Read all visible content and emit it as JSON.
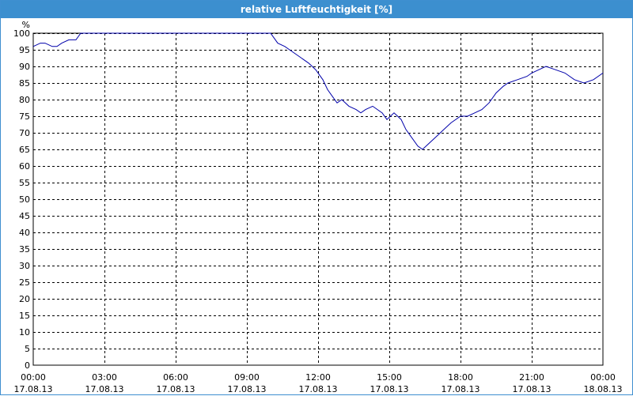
{
  "window": {
    "title": "relative Luftfeuchtigkeit [%]"
  },
  "colors": {
    "titlebar": "#3c8fcf",
    "line": "#0000aa",
    "grid": "#000000",
    "background": "#ffffff"
  },
  "chart_data": {
    "type": "line",
    "title": "relative Luftfeuchtigkeit [%]",
    "ylabel": "%",
    "xlabel": "",
    "ylim": [
      0,
      100
    ],
    "xlim": [
      0,
      24
    ],
    "grid": true,
    "y_ticks": [
      "0",
      "5",
      "10",
      "15",
      "20",
      "25",
      "30",
      "35",
      "40",
      "45",
      "50",
      "55",
      "60",
      "65",
      "70",
      "75",
      "80",
      "85",
      "90",
      "95",
      "100"
    ],
    "x_ticks": [
      {
        "time": "00:00",
        "date": "17.08.13"
      },
      {
        "time": "03:00",
        "date": "17.08.13"
      },
      {
        "time": "06:00",
        "date": "17.08.13"
      },
      {
        "time": "09:00",
        "date": "17.08.13"
      },
      {
        "time": "12:00",
        "date": "17.08.13"
      },
      {
        "time": "15:00",
        "date": "17.08.13"
      },
      {
        "time": "18:00",
        "date": "17.08.13"
      },
      {
        "time": "21:00",
        "date": "17.08.13"
      },
      {
        "time": "00:00",
        "date": "18.08.13"
      }
    ],
    "series": [
      {
        "x": [
          0,
          0.3,
          0.5,
          0.8,
          1.0,
          1.2,
          1.5,
          1.8,
          2.0,
          3.0,
          6.0,
          9.0,
          10.0,
          10.1,
          10.3,
          10.6,
          10.8,
          11.2,
          11.6,
          11.9,
          12.2,
          12.4,
          12.6,
          12.8,
          13.0,
          13.3,
          13.6,
          13.8,
          14.0,
          14.3,
          14.5,
          14.7,
          14.9,
          15.2,
          15.5,
          15.7,
          15.9,
          16.2,
          16.4,
          16.7,
          17.0,
          17.3,
          17.6,
          18.0,
          18.3,
          18.6,
          18.9,
          19.2,
          19.5,
          19.8,
          20.0,
          20.4,
          20.8,
          21.0,
          21.3,
          21.6,
          22.0,
          22.4,
          22.8,
          23.2,
          23.6,
          24.0
        ],
        "y": [
          96,
          97,
          97,
          96,
          96,
          97,
          98,
          98,
          100,
          100,
          100,
          100,
          100,
          99,
          97,
          96,
          95,
          93,
          91,
          89,
          86,
          83,
          81,
          79,
          80,
          78,
          77,
          76,
          77,
          78,
          77,
          76,
          74,
          76,
          74,
          71,
          69,
          66,
          65,
          67,
          69,
          71,
          73,
          75,
          75,
          76,
          77,
          79,
          82,
          84,
          85,
          86,
          87,
          88,
          89,
          90,
          89,
          88,
          86,
          85,
          86,
          88
        ]
      }
    ]
  }
}
